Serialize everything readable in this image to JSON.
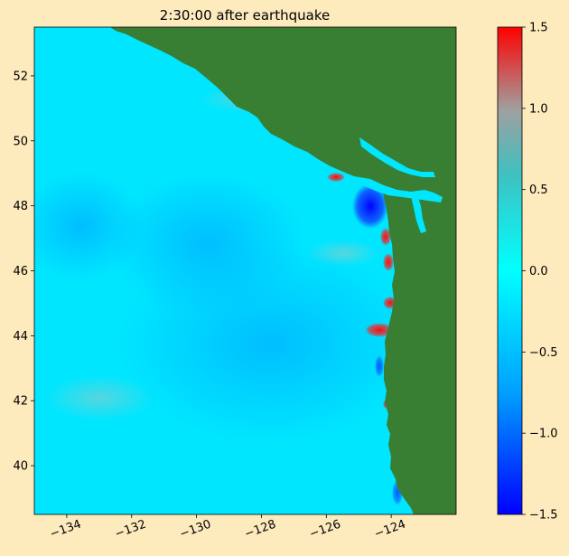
{
  "title": "2:30:00 after earthquake",
  "map": {
    "lon_range": [
      -135.0,
      -122.0
    ],
    "lat_range": [
      38.5,
      53.5
    ],
    "x_ticks": [
      {
        "value": -134,
        "label": "−134"
      },
      {
        "value": -132,
        "label": "−132"
      },
      {
        "value": -130,
        "label": "−130"
      },
      {
        "value": -128,
        "label": "−128"
      },
      {
        "value": -126,
        "label": "−126"
      },
      {
        "value": -124,
        "label": "−124"
      }
    ],
    "y_ticks": [
      {
        "value": 40,
        "label": "40"
      },
      {
        "value": 42,
        "label": "42"
      },
      {
        "value": 44,
        "label": "44"
      },
      {
        "value": 46,
        "label": "46"
      },
      {
        "value": 48,
        "label": "48"
      },
      {
        "value": 50,
        "label": "50"
      },
      {
        "value": 52,
        "label": "52"
      }
    ],
    "colors": {
      "ocean": "#00e6ff",
      "land": "#387f34",
      "background": "#fdebbe"
    }
  },
  "colorbar": {
    "range": [
      -1.5,
      1.5
    ],
    "ticks": [
      {
        "value": 1.5,
        "label": "1.5"
      },
      {
        "value": 1.0,
        "label": "1.0"
      },
      {
        "value": 0.5,
        "label": "0.5"
      },
      {
        "value": 0.0,
        "label": "0.0"
      },
      {
        "value": -0.5,
        "label": "−0.5"
      },
      {
        "value": -1.0,
        "label": "−1.0"
      },
      {
        "value": -1.5,
        "label": "−1.5"
      }
    ],
    "colormap": [
      "#0000ff",
      "#00a5ff",
      "#00ffff",
      "#a0a0a0",
      "#ff0000"
    ]
  }
}
